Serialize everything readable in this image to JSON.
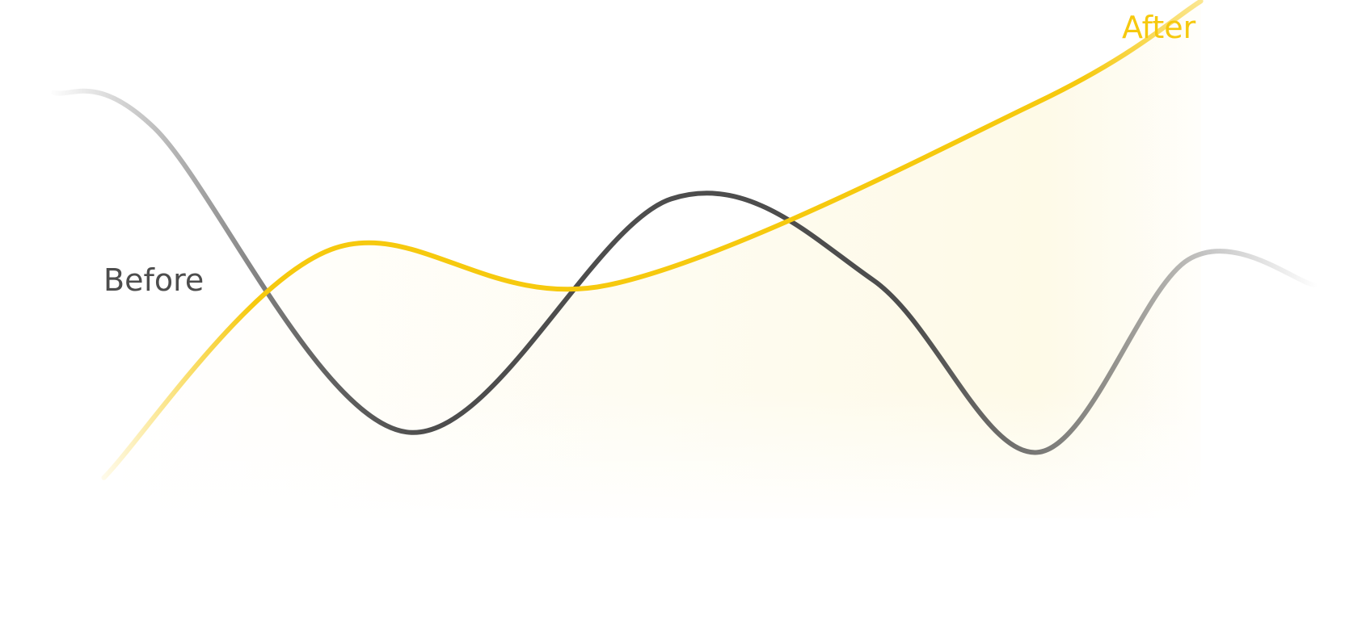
{
  "colors": {
    "before": "#4d4d4d",
    "after": "#f6c90e",
    "background": "#ffffff"
  },
  "chart_data": {
    "type": "line",
    "title": "",
    "xlabel": "",
    "ylabel": "",
    "grid": false,
    "axes_visible": false,
    "xlim": [
      0,
      10
    ],
    "ylim": [
      0,
      100
    ],
    "series": [
      {
        "name": "Before",
        "color": "#4d4d4d",
        "style": "smooth line, faded ends",
        "x": [
          0.0,
          0.8,
          2.8,
          4.9,
          6.5,
          7.8,
          9.0,
          10.0
        ],
        "y": [
          84,
          77,
          17,
          63,
          47,
          13,
          51,
          46
        ]
      },
      {
        "name": "After",
        "color": "#f6c90e",
        "style": "smooth line with light area fill, faded ends",
        "x": [
          0.4,
          2.2,
          4.4,
          7.8,
          9.1
        ],
        "y": [
          8,
          53,
          46,
          82,
          102
        ]
      }
    ]
  }
}
